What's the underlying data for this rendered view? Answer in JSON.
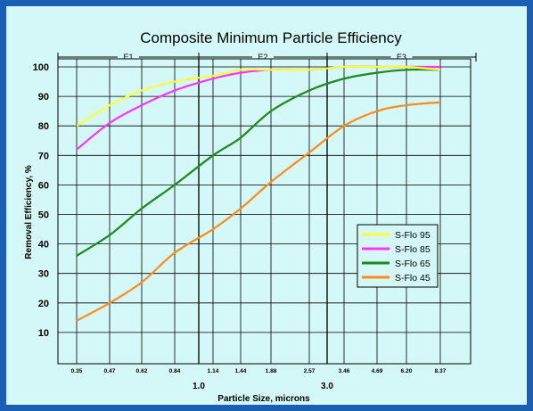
{
  "chart_data": {
    "type": "line",
    "title": "Composite Minimum Particle Efficiency",
    "xlabel": "Particle Size, microns",
    "ylabel": "Removal Efficiency, %",
    "x_ticks": [
      "0.35",
      "0.47",
      "0.62",
      "0.84",
      "1.14",
      "1.44",
      "1.88",
      "2.57",
      "3.46",
      "4.69",
      "6.20",
      "8.37"
    ],
    "x_major_labels": [
      {
        "label": "1.0",
        "after_tick": 3
      },
      {
        "label": "3.0",
        "after_tick": 7
      }
    ],
    "ylim": [
      0,
      100
    ],
    "y_ticks": [
      10,
      20,
      30,
      40,
      50,
      60,
      70,
      80,
      90,
      100
    ],
    "ranges": [
      {
        "label": "E1",
        "from": "0.35",
        "to": "1.0"
      },
      {
        "label": "E2",
        "from": "1.0",
        "to": "3.0"
      },
      {
        "label": "E3",
        "from": "3.0",
        "to": "8.37"
      }
    ],
    "grid": true,
    "legend_position": "center-right",
    "series": [
      {
        "name": "S-Flo 95",
        "color": "#ffff33",
        "values": [
          80,
          87,
          92,
          95,
          97,
          99,
          99,
          99,
          100,
          100,
          100,
          99
        ]
      },
      {
        "name": "S-Flo 85",
        "color": "#ff33ff",
        "values": [
          72,
          81,
          87,
          92,
          96,
          98,
          99,
          99,
          100,
          100,
          100,
          100
        ]
      },
      {
        "name": "S-Flo 65",
        "color": "#1a8a1a",
        "values": [
          36,
          43,
          52,
          60,
          70,
          76,
          85,
          92,
          96,
          98,
          99,
          99
        ]
      },
      {
        "name": "S-Flo 45",
        "color": "#ff8c1a",
        "values": [
          14,
          20,
          27,
          37,
          45,
          52,
          61,
          71,
          80,
          85,
          87,
          88
        ]
      }
    ]
  }
}
